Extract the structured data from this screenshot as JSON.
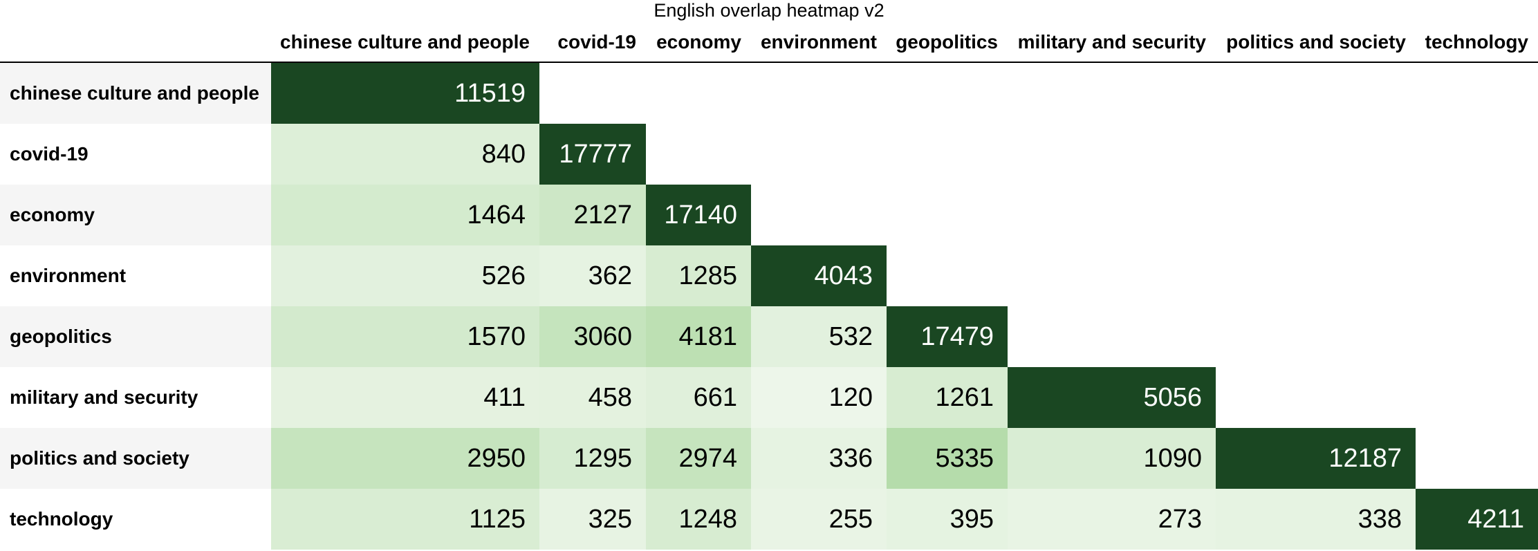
{
  "chart_data": {
    "type": "heatmap",
    "title": "English overlap heatmap v2",
    "columns": [
      "chinese culture and people",
      "covid-19",
      "economy",
      "environment",
      "geopolitics",
      "military and security",
      "politics and society",
      "technology"
    ],
    "rows": [
      "chinese culture and people",
      "covid-19",
      "economy",
      "environment",
      "geopolitics",
      "military and security",
      "politics and society",
      "technology"
    ],
    "values": [
      [
        11519,
        null,
        null,
        null,
        null,
        null,
        null,
        null
      ],
      [
        840,
        17777,
        null,
        null,
        null,
        null,
        null,
        null
      ],
      [
        1464,
        2127,
        17140,
        null,
        null,
        null,
        null,
        null
      ],
      [
        526,
        362,
        1285,
        4043,
        null,
        null,
        null,
        null
      ],
      [
        1570,
        3060,
        4181,
        532,
        17479,
        null,
        null,
        null
      ],
      [
        411,
        458,
        661,
        120,
        1261,
        5056,
        null,
        null
      ],
      [
        2950,
        1295,
        2974,
        336,
        5335,
        1090,
        12187,
        null
      ],
      [
        1125,
        325,
        1248,
        255,
        395,
        273,
        338,
        4211
      ]
    ],
    "diagonal_color": "#1a4722",
    "scale_colors": [
      "#f7fbf5",
      "#b5dcab"
    ]
  }
}
